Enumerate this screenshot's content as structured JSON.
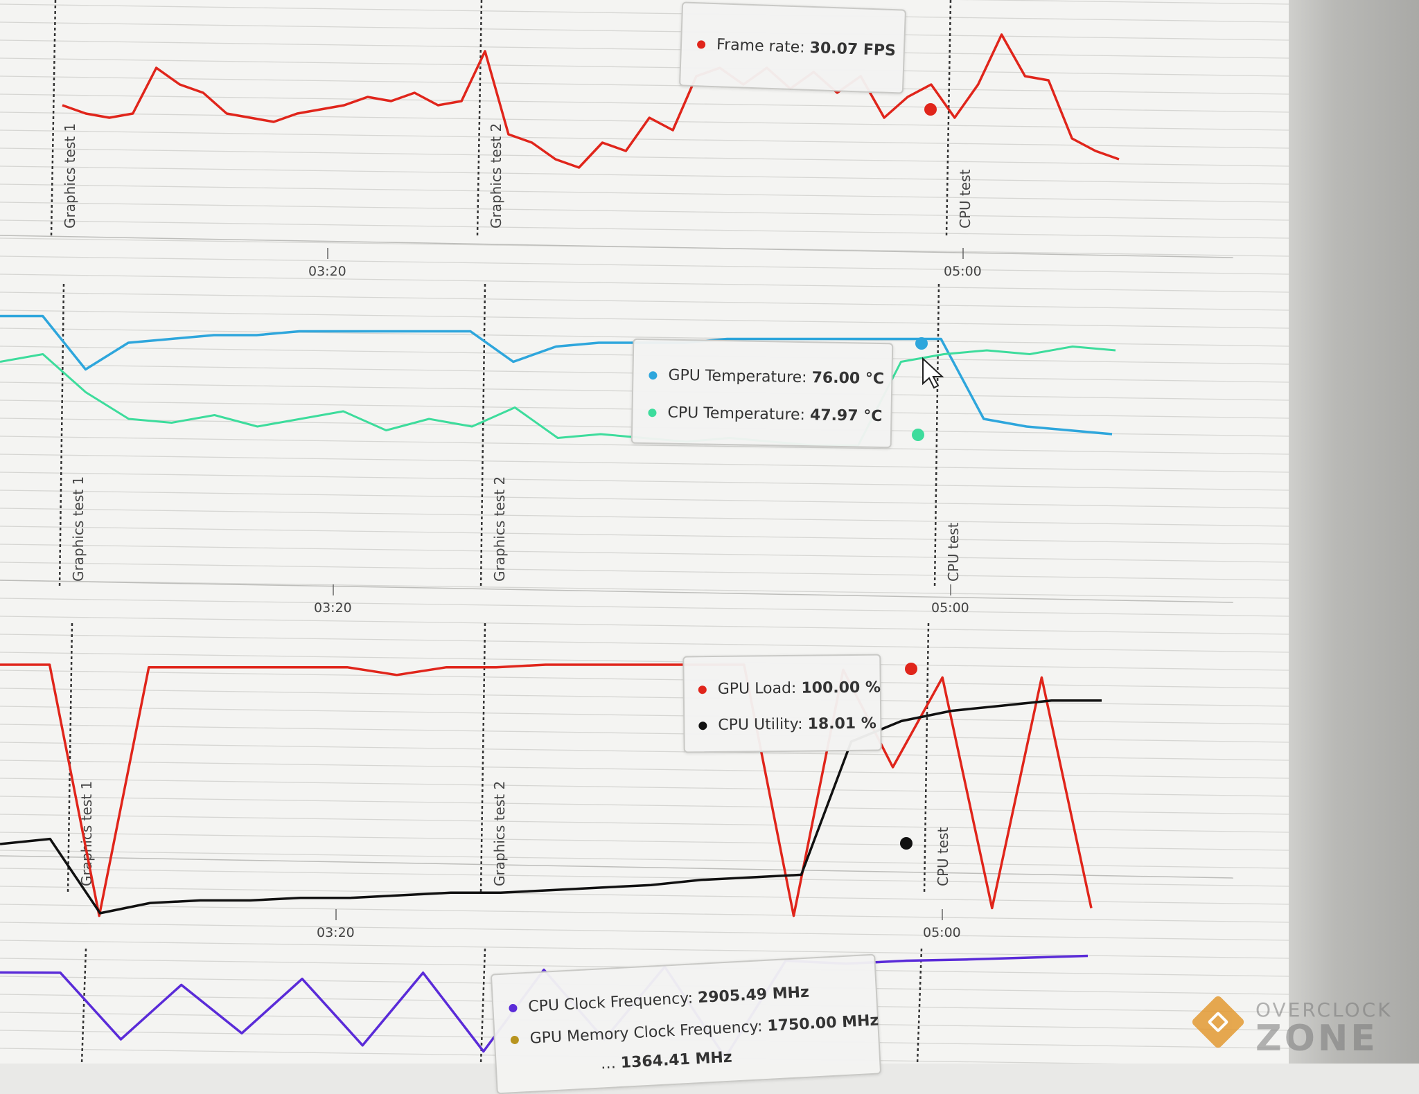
{
  "marker_labels": {
    "graphics_test_1": "Graphics test 1",
    "graphics_test_2": "Graphics test 2",
    "cpu_test": "CPU test"
  },
  "ticks": {
    "t1": "03:20",
    "t2": "05:00"
  },
  "tooltips": {
    "frame_rate": {
      "label": "Frame rate:",
      "value": "30.07 FPS",
      "color": "#e0251b"
    },
    "gpu_temp": {
      "label": "GPU Temperature:",
      "value": "76.00 °C",
      "color": "#2ea6dc"
    },
    "cpu_temp": {
      "label": "CPU Temperature:",
      "value": "47.97 °C",
      "color": "#3ddc9c"
    },
    "gpu_load": {
      "label": "GPU Load:",
      "value": "100.00 %",
      "color": "#e0251b"
    },
    "cpu_util": {
      "label": "CPU Utility:",
      "value": "18.01 %",
      "color": "#111111"
    },
    "cpu_clock": {
      "label": "CPU Clock Frequency:",
      "value": "2905.49 MHz",
      "color": "#5a2bd8"
    },
    "gpu_mem_clock": {
      "label": "GPU Memory Clock Frequency:",
      "value": "1750.00 MHz",
      "color": "#b8941f"
    },
    "partial": {
      "label": "…",
      "value": "1364.41 MHz",
      "color": "#e0251b"
    }
  },
  "watermark": {
    "line1": "OVERCLOCK",
    "line2": "ZONE"
  },
  "chart_data": [
    {
      "type": "line",
      "series": [
        {
          "name": "Frame rate",
          "values": [
            33,
            31,
            30,
            31,
            42,
            38,
            36,
            31,
            30,
            29,
            31,
            32,
            33,
            35,
            34,
            36,
            33,
            34,
            46,
            26,
            24,
            20,
            18,
            24,
            22,
            30,
            27,
            40,
            42,
            38,
            42,
            37,
            41,
            36,
            40,
            30,
            35,
            38,
            30,
            38,
            50,
            40,
            39,
            25,
            22,
            20
          ]
        }
      ]
    },
    {
      "type": "line",
      "series": [
        {
          "name": "GPU Temperature",
          "values": [
            82,
            82,
            68,
            75,
            76,
            77,
            77,
            78,
            78,
            78,
            78,
            78,
            70,
            74,
            75,
            75,
            75,
            76,
            76,
            76,
            76,
            76,
            76,
            55,
            53,
            52,
            51
          ]
        },
        {
          "name": "CPU Temperature",
          "values": [
            70,
            72,
            62,
            55,
            54,
            56,
            53,
            55,
            57,
            52,
            55,
            53,
            58,
            50,
            51,
            50,
            49,
            50,
            49,
            48,
            48,
            70,
            72,
            73,
            72,
            74,
            73
          ]
        }
      ]
    },
    {
      "type": "line",
      "series": [
        {
          "name": "GPU Load",
          "values": [
            100,
            100,
            2,
            99,
            99,
            99,
            99,
            99,
            96,
            99,
            99,
            100,
            100,
            100,
            100,
            100,
            2,
            98,
            60,
            95,
            5,
            95,
            5
          ]
        },
        {
          "name": "CPU Utility",
          "values": [
            30,
            32,
            3,
            7,
            8,
            8,
            9,
            9,
            10,
            11,
            11,
            12,
            13,
            14,
            16,
            17,
            18,
            70,
            78,
            82,
            84,
            86,
            86
          ]
        }
      ]
    },
    {
      "type": "line",
      "series": [
        {
          "name": "CPU Clock Frequency",
          "values": [
            2905,
            2900,
            1800,
            2700,
            1900,
            2800,
            1700,
            2900,
            1600,
            2950,
            1800,
            3000,
            1500,
            3100,
            3050,
            3100,
            3120,
            3150,
            3180
          ]
        }
      ]
    }
  ]
}
